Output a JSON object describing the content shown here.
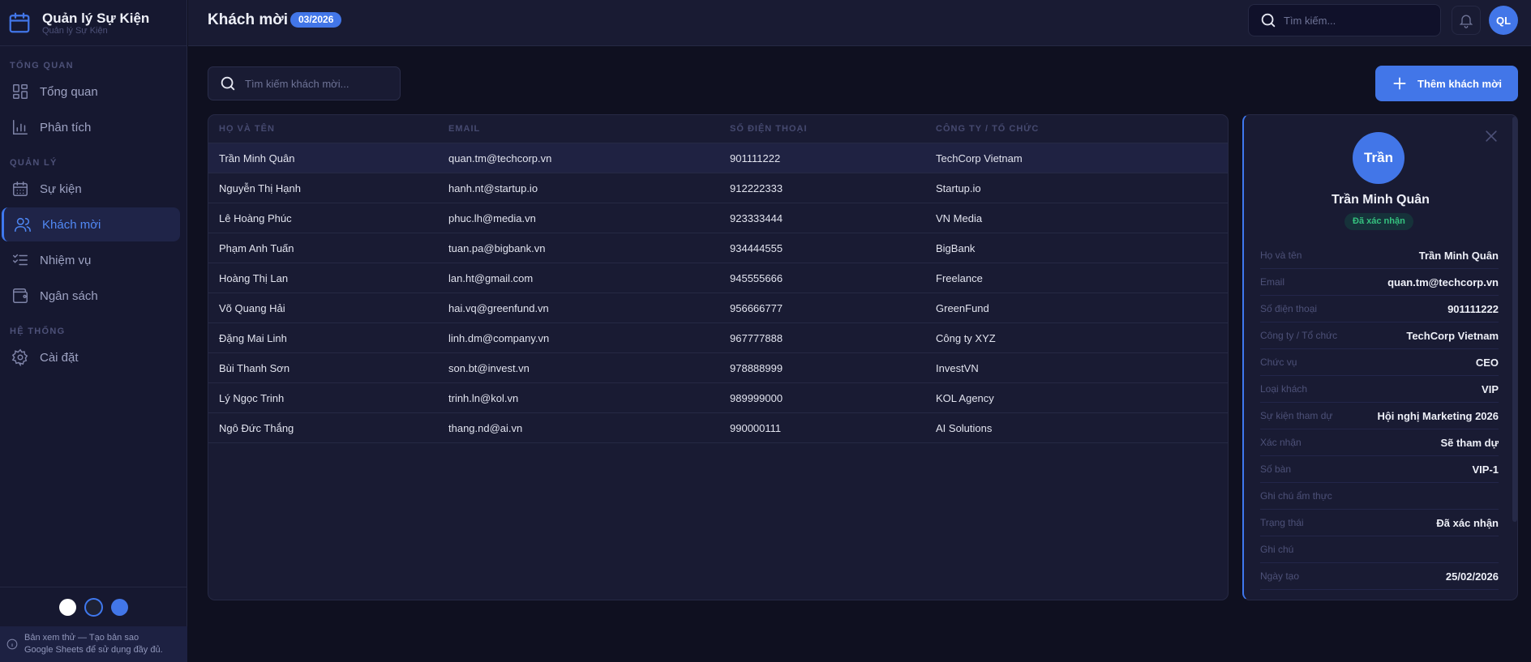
{
  "brand": {
    "title": "Quản lý Sự Kiện",
    "subtitle": "Quản lý Sự Kiện"
  },
  "sidebar": {
    "sections": [
      {
        "label": "TỔNG QUAN"
      },
      {
        "label": "QUẢN LÝ"
      },
      {
        "label": "HỆ THỐNG"
      }
    ],
    "items": [
      {
        "label": "Tổng quan",
        "icon": "dashboard-icon"
      },
      {
        "label": "Phân tích",
        "icon": "bar-chart-icon"
      },
      {
        "label": "Sự kiện",
        "icon": "calendar-icon"
      },
      {
        "label": "Khách mời",
        "icon": "users-icon",
        "active": true
      },
      {
        "label": "Nhiệm vụ",
        "icon": "checklist-icon"
      },
      {
        "label": "Ngân sách",
        "icon": "wallet-icon"
      },
      {
        "label": "Cài đặt",
        "icon": "gear-icon"
      }
    ],
    "themes": [
      {
        "name": "light",
        "color": "#ffffff"
      },
      {
        "name": "dark",
        "color": "#1e2235",
        "selected": true
      },
      {
        "name": "blue",
        "color": "#4276e8"
      }
    ],
    "notice_line1": "Bản xem thử — Tạo bản sao",
    "notice_line2": "Google Sheets để sử dụng đầy đủ."
  },
  "header": {
    "title": "Khách mời",
    "period": "03/2026",
    "search_placeholder": "Tìm kiếm...",
    "user_initials": "QL"
  },
  "toolbar": {
    "search_placeholder": "Tìm kiếm khách mời...",
    "add_label": "Thêm khách mời"
  },
  "table": {
    "columns": [
      "HỌ VÀ TÊN",
      "EMAIL",
      "SỐ ĐIỆN THOẠI",
      "CÔNG TY / TỔ CHỨC"
    ],
    "rows": [
      {
        "name": "Trần Minh Quân",
        "email": "quan.tm@techcorp.vn",
        "phone": "901111222",
        "company": "TechCorp Vietnam"
      },
      {
        "name": "Nguyễn Thị Hạnh",
        "email": "hanh.nt@startup.io",
        "phone": "912222333",
        "company": "Startup.io"
      },
      {
        "name": "Lê Hoàng Phúc",
        "email": "phuc.lh@media.vn",
        "phone": "923333444",
        "company": "VN Media"
      },
      {
        "name": "Phạm Anh Tuấn",
        "email": "tuan.pa@bigbank.vn",
        "phone": "934444555",
        "company": "BigBank"
      },
      {
        "name": "Hoàng Thị Lan",
        "email": "lan.ht@gmail.com",
        "phone": "945555666",
        "company": "Freelance"
      },
      {
        "name": "Võ Quang Hải",
        "email": "hai.vq@greenfund.vn",
        "phone": "956666777",
        "company": "GreenFund"
      },
      {
        "name": "Đặng Mai Linh",
        "email": "linh.dm@company.vn",
        "phone": "967777888",
        "company": "Công ty XYZ"
      },
      {
        "name": "Bùi Thanh Sơn",
        "email": "son.bt@invest.vn",
        "phone": "978888999",
        "company": "InvestVN"
      },
      {
        "name": "Lý Ngọc Trinh",
        "email": "trinh.ln@kol.vn",
        "phone": "989999000",
        "company": "KOL Agency"
      },
      {
        "name": "Ngô Đức Thắng",
        "email": "thang.nd@ai.vn",
        "phone": "990000111",
        "company": "AI Solutions"
      }
    ]
  },
  "detail": {
    "avatar_text": "Trần",
    "name": "Trần Minh Quân",
    "status_badge": "Đã xác nhận",
    "fields": [
      {
        "label": "Họ và tên",
        "value": "Trần Minh Quân"
      },
      {
        "label": "Email",
        "value": "quan.tm@techcorp.vn"
      },
      {
        "label": "Số điện thoại",
        "value": "901111222"
      },
      {
        "label": "Công ty / Tổ chức",
        "value": "TechCorp Vietnam"
      },
      {
        "label": "Chức vụ",
        "value": "CEO"
      },
      {
        "label": "Loại khách",
        "value": "VIP"
      },
      {
        "label": "Sự kiện tham dự",
        "value": "Hội nghị Marketing 2026"
      },
      {
        "label": "Xác nhận",
        "value": "Sẽ tham dự"
      },
      {
        "label": "Số bàn",
        "value": "VIP-1"
      },
      {
        "label": "Ghi chú ẩm thực",
        "value": ""
      },
      {
        "label": "Trạng thái",
        "value": "Đã xác nhận"
      },
      {
        "label": "Ghi chú",
        "value": ""
      },
      {
        "label": "Ngày tạo",
        "value": "25/02/2026"
      }
    ]
  },
  "colors": {
    "accent": "#4276e8",
    "success": "#35c27f",
    "background": "#0f1020",
    "panel": "#191b33"
  }
}
